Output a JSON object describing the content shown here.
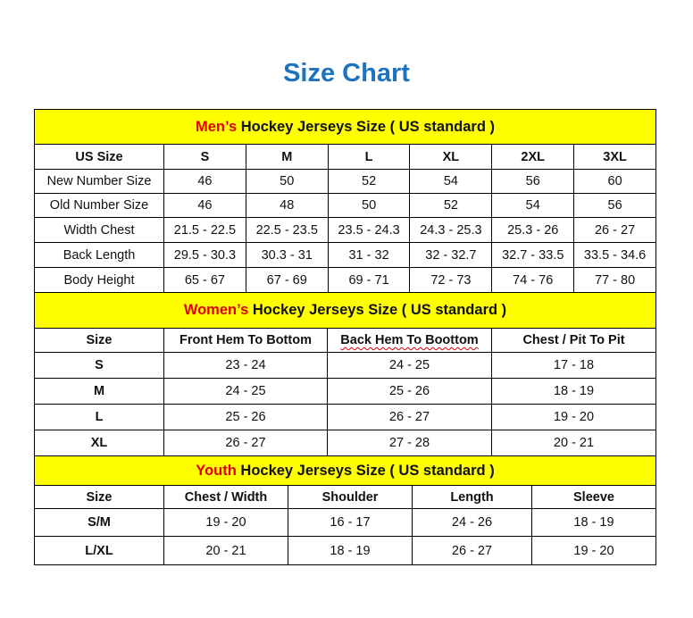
{
  "title": "Size Chart",
  "men": {
    "band_highlight": "Men’s",
    "band_rest": " Hockey Jerseys Size ( US standard )",
    "header": [
      "US Size",
      "S",
      "M",
      "L",
      "XL",
      "2XL",
      "3XL"
    ],
    "rows": [
      [
        "New Number Size",
        "46",
        "50",
        "52",
        "54",
        "56",
        "60"
      ],
      [
        "Old Number Size",
        "46",
        "48",
        "50",
        "52",
        "54",
        "56"
      ],
      [
        "Width Chest",
        "21.5 - 22.5",
        "22.5 - 23.5",
        "23.5 - 24.3",
        "24.3 - 25.3",
        "25.3 - 26",
        "26 - 27"
      ],
      [
        "Back Length",
        "29.5 - 30.3",
        "30.3 - 31",
        "31 - 32",
        "32 - 32.7",
        "32.7 - 33.5",
        "33.5 - 34.6"
      ],
      [
        "Body Height",
        "65 - 67",
        "67 - 69",
        "69 - 71",
        "72 - 73",
        "74 - 76",
        "77 - 80"
      ]
    ]
  },
  "women": {
    "band_highlight": "Women’s",
    "band_rest": " Hockey Jerseys Size ( US standard )",
    "header": [
      "Size",
      "Front Hem To Bottom",
      "Back Hem To Boottom",
      "Chest / Pit To Pit"
    ],
    "rows": [
      [
        "S",
        "23 - 24",
        "24 - 25",
        "17 - 18"
      ],
      [
        "M",
        "24 - 25",
        "25 - 26",
        "18 - 19"
      ],
      [
        "L",
        "25 - 26",
        "26 - 27",
        "19 - 20"
      ],
      [
        "XL",
        "26 - 27",
        "27 - 28",
        "20 - 21"
      ]
    ]
  },
  "youth": {
    "band_highlight": "Youth",
    "band_rest": " Hockey Jerseys Size ( US standard )",
    "header": [
      "Size",
      "Chest / Width",
      "Shoulder",
      "Length",
      "Sleeve"
    ],
    "rows": [
      [
        "S/M",
        "19 - 20",
        "16 - 17",
        "24 - 26",
        "18 - 19"
      ],
      [
        "L/XL",
        "20 - 21",
        "18 - 19",
        "26 - 27",
        "19 - 20"
      ]
    ]
  },
  "colors": {
    "title": "#1e73be",
    "band": "#ffff00",
    "highlight": "#e00000"
  }
}
